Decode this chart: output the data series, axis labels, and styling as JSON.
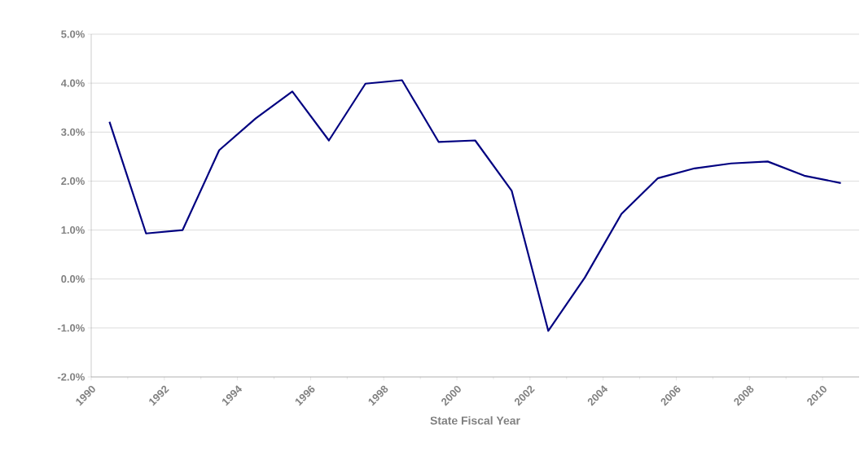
{
  "chart_data": {
    "type": "line",
    "xlabel": "State Fiscal Year",
    "x": [
      1990.5,
      1991.5,
      1992.5,
      1993.5,
      1994.5,
      1995.5,
      1996.5,
      1997.5,
      1998.5,
      1999.5,
      2000.5,
      2001.5,
      2002.5,
      2003.5,
      2004.5,
      2005.5,
      2006.5,
      2007.5,
      2008.5,
      2009.5,
      2010.5
    ],
    "values": [
      3.21,
      0.93,
      1.0,
      2.63,
      3.28,
      3.83,
      2.83,
      3.99,
      4.06,
      2.8,
      2.83,
      1.8,
      -1.06,
      0.03,
      1.33,
      2.06,
      2.26,
      2.36,
      2.4,
      2.11,
      1.96
    ],
    "color": "#000080",
    "xlim": [
      1990,
      2011
    ],
    "xticks": [
      1990,
      1992,
      1994,
      1996,
      1998,
      2000,
      2002,
      2004,
      2006,
      2008,
      2010
    ],
    "ylim": [
      -2,
      5
    ],
    "yticks": [
      {
        "value": -2,
        "label": "-2.0%"
      },
      {
        "value": -1,
        "label": "-1.0%"
      },
      {
        "value": 0,
        "label": "0.0%"
      },
      {
        "value": 1,
        "label": "1.0%"
      },
      {
        "value": 2,
        "label": "2.0%"
      },
      {
        "value": 3,
        "label": "3.0%"
      },
      {
        "value": 4,
        "label": "4.0%"
      },
      {
        "value": 5,
        "label": "5.0%"
      }
    ],
    "grid": "y",
    "marker": "none",
    "line_style": "solid"
  }
}
